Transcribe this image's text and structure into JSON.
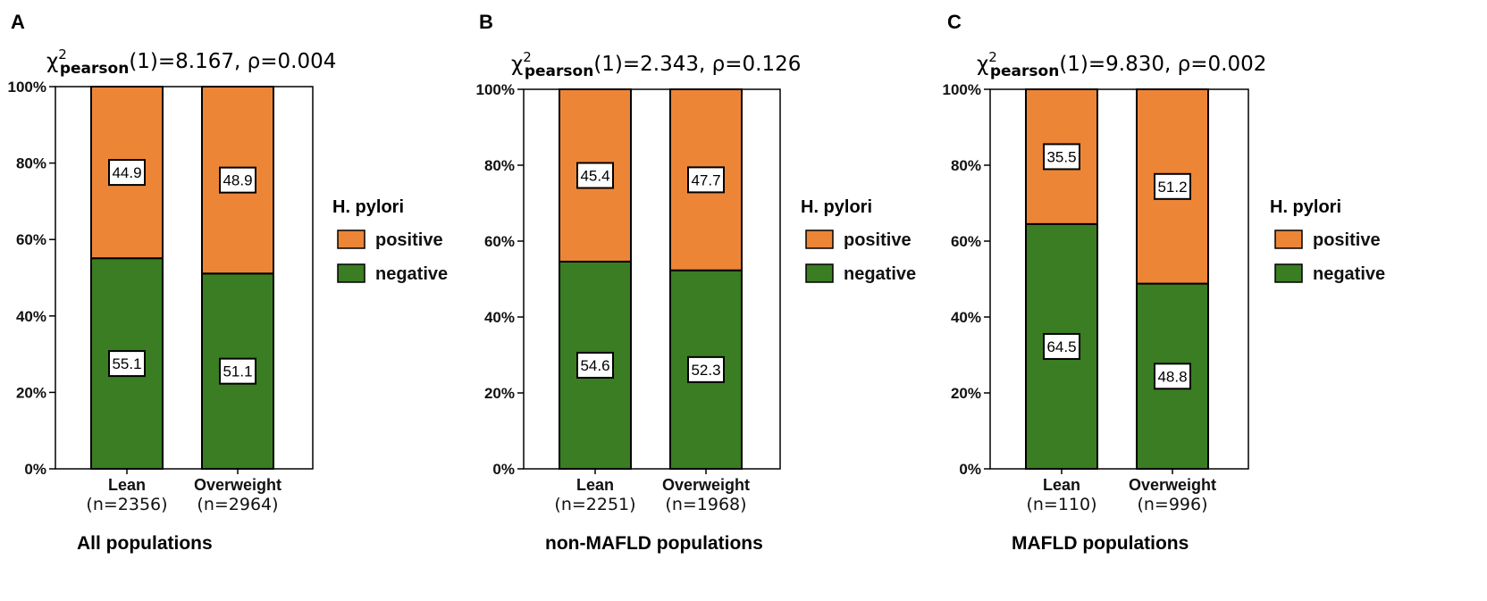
{
  "colors": {
    "positive": "#ED8537",
    "negative": "#3A7D22",
    "outline": "#000000"
  },
  "chart_data": [
    {
      "type": "bar",
      "stacked": true,
      "panel_letter": "A",
      "stat_symbol": "χ",
      "stat_sup": "2",
      "stat_sub": "pearson",
      "stat_rest": "(1)=8.167, ρ=0.004",
      "title": "All populations",
      "categories": [
        "Lean",
        "Overweight"
      ],
      "category_n": [
        "(n=2356)",
        "(n=2964)"
      ],
      "series": [
        {
          "name": "negative",
          "values": [
            55.1,
            51.1
          ],
          "labels": [
            "55.1",
            "51.1"
          ]
        },
        {
          "name": "positive",
          "values": [
            44.9,
            48.9
          ],
          "labels": [
            "44.9",
            "48.9"
          ]
        }
      ],
      "yticks": [
        "0%",
        "20%",
        "40%",
        "60%",
        "80%",
        "100%"
      ],
      "ylim": [
        0,
        100
      ],
      "legend_title": "H. pylori",
      "legend_items": [
        "positive",
        "negative"
      ]
    },
    {
      "type": "bar",
      "stacked": true,
      "panel_letter": "B",
      "stat_symbol": "χ",
      "stat_sup": "2",
      "stat_sub": "pearson",
      "stat_rest": "(1)=2.343, ρ=0.126",
      "title": "non-MAFLD populations",
      "categories": [
        "Lean",
        "Overweight"
      ],
      "category_n": [
        "(n=2251)",
        "(n=1968)"
      ],
      "series": [
        {
          "name": "negative",
          "values": [
            54.6,
            52.3
          ],
          "labels": [
            "54.6",
            "52.3"
          ]
        },
        {
          "name": "positive",
          "values": [
            45.4,
            47.7
          ],
          "labels": [
            "45.4",
            "47.7"
          ]
        }
      ],
      "yticks": [
        "0%",
        "20%",
        "40%",
        "60%",
        "80%",
        "100%"
      ],
      "ylim": [
        0,
        100
      ],
      "legend_title": "H. pylori",
      "legend_items": [
        "positive",
        "negative"
      ]
    },
    {
      "type": "bar",
      "stacked": true,
      "panel_letter": "C",
      "stat_symbol": "χ",
      "stat_sup": "2",
      "stat_sub": "pearson",
      "stat_rest": "(1)=9.830, ρ=0.002",
      "title": "MAFLD populations",
      "categories": [
        "Lean",
        "Overweight"
      ],
      "category_n": [
        "(n=110)",
        "(n=996)"
      ],
      "series": [
        {
          "name": "negative",
          "values": [
            64.5,
            48.8
          ],
          "labels": [
            "64.5",
            "48.8"
          ]
        },
        {
          "name": "positive",
          "values": [
            35.5,
            51.2
          ],
          "labels": [
            "35.5",
            "51.2"
          ]
        }
      ],
      "yticks": [
        "0%",
        "20%",
        "40%",
        "60%",
        "80%",
        "100%"
      ],
      "ylim": [
        0,
        100
      ],
      "legend_title": "H. pylori",
      "legend_items": [
        "positive",
        "negative"
      ]
    }
  ]
}
